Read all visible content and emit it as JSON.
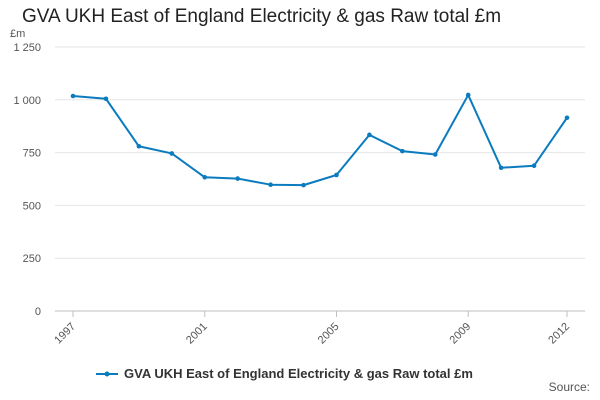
{
  "chart_data": {
    "type": "line",
    "title": "GVA UKH East of England Electricity & gas Raw total £m",
    "unit_label": "£m",
    "x": [
      1997,
      1998,
      1999,
      2000,
      2001,
      2002,
      2003,
      2004,
      2005,
      2006,
      2007,
      2008,
      2009,
      2010,
      2011,
      2012
    ],
    "x_tick_labels": [
      "1997",
      "2001",
      "2005",
      "2009",
      "2012"
    ],
    "y_tick_labels": [
      "0",
      "250",
      "500",
      "750",
      "1 000",
      "1 250"
    ],
    "ylim": [
      0,
      1250
    ],
    "xlim": [
      1997,
      2012
    ],
    "grid": true,
    "legend_position": "bottom",
    "series": [
      {
        "name": "GVA UKH East of England Electricity & gas Raw total £m",
        "color": "#0b7bbf",
        "values": [
          1018,
          1005,
          780,
          746,
          633,
          627,
          598,
          596,
          644,
          834,
          757,
          741,
          1023,
          678,
          688,
          915
        ]
      }
    ]
  },
  "footer": {
    "source_label": "Source:"
  }
}
